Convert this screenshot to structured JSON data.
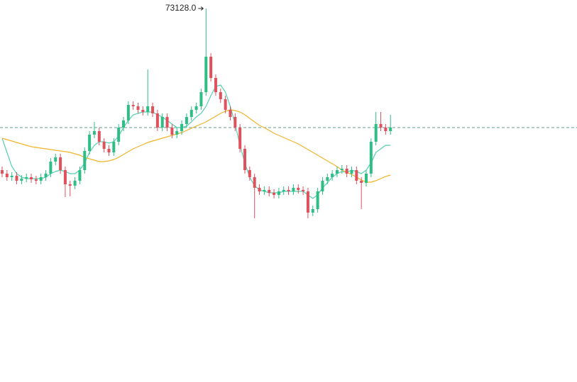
{
  "chart_data": {
    "type": "candlestick",
    "ylim": [
      46778,
      73728
    ],
    "up_color": "#2ebd85",
    "down_color": "#e0515e",
    "current_line_color": "#5e9e8e",
    "max_label": "73128.0",
    "open": [
      61728,
      61478,
      61228,
      61328,
      60978,
      61128,
      61228,
      61078,
      60978,
      61228,
      61478,
      62328,
      62628,
      61728,
      60728,
      60628,
      60978,
      61728,
      63078,
      64228,
      64478,
      63728,
      63228,
      62978,
      63728,
      64728,
      65228,
      66328,
      66228,
      65978,
      65828,
      66228,
      65728,
      64728,
      65478,
      64728,
      64228,
      64478,
      64978,
      65478,
      65978,
      66228,
      67228,
      69728,
      68228,
      67228,
      66728,
      65978,
      65478,
      64728,
      63228,
      61728,
      61228,
      60478,
      60228,
      60328,
      60128,
      59978,
      60228,
      60328,
      60228,
      60478,
      60328,
      60228,
      58728,
      58978,
      60228,
      60978,
      61228,
      61478,
      61728,
      61828,
      61478,
      61728,
      60978,
      60828,
      61478,
      63728,
      64978,
      64728,
      64478
    ],
    "high": [
      61978,
      61728,
      61578,
      61578,
      61378,
      61478,
      61478,
      61328,
      61478,
      61728,
      62578,
      62878,
      62878,
      61978,
      60978,
      61228,
      61978,
      63328,
      64478,
      65128,
      64728,
      63978,
      63478,
      63978,
      64978,
      65478,
      66578,
      66578,
      66478,
      66228,
      68828,
      66478,
      65978,
      65728,
      65728,
      64978,
      64728,
      65228,
      65728,
      66228,
      66478,
      67478,
      73128,
      69978,
      68478,
      67478,
      66978,
      66228,
      65728,
      64978,
      63478,
      61978,
      61478,
      60728,
      60578,
      60578,
      60378,
      60478,
      60578,
      60578,
      60728,
      60728,
      60578,
      60478,
      59228,
      60478,
      61228,
      61478,
      61728,
      61978,
      62078,
      62078,
      61978,
      61978,
      61228,
      61728,
      63978,
      65828,
      65828,
      64978,
      65628
    ],
    "low": [
      61228,
      60978,
      60978,
      60728,
      60728,
      60878,
      60828,
      60728,
      60728,
      60978,
      61228,
      62078,
      61478,
      59828,
      59878,
      60378,
      60728,
      61478,
      62828,
      63978,
      63478,
      62978,
      62728,
      62728,
      63478,
      64478,
      64978,
      65978,
      65728,
      65578,
      65578,
      65478,
      64478,
      64478,
      64478,
      63978,
      63978,
      64228,
      64728,
      65228,
      65728,
      65978,
      66978,
      67978,
      66978,
      66478,
      65728,
      65228,
      64478,
      62978,
      61478,
      60978,
      58328,
      59978,
      59978,
      59878,
      59728,
      59728,
      59978,
      59978,
      59978,
      60078,
      59978,
      58328,
      58478,
      58728,
      59978,
      60728,
      60978,
      61228,
      61478,
      61228,
      61228,
      60728,
      58978,
      60578,
      61228,
      63478,
      64478,
      64228,
      64228
    ],
    "close": [
      61478,
      61228,
      61328,
      60978,
      61128,
      61228,
      61078,
      60978,
      61228,
      61478,
      62328,
      62628,
      61728,
      60728,
      60628,
      60978,
      61728,
      63078,
      64228,
      64478,
      63728,
      63228,
      62978,
      63728,
      64728,
      65228,
      66328,
      66228,
      65978,
      65828,
      66228,
      65728,
      64728,
      65478,
      64728,
      64228,
      64478,
      64978,
      65478,
      65978,
      66228,
      67228,
      69728,
      68228,
      67228,
      66728,
      65978,
      65478,
      64728,
      63228,
      61728,
      61228,
      60478,
      60228,
      60328,
      60128,
      59978,
      60228,
      60328,
      60228,
      60478,
      60328,
      60228,
      58728,
      58978,
      60228,
      60978,
      61228,
      61478,
      61728,
      61828,
      61478,
      61728,
      60978,
      60828,
      61478,
      63728,
      64978,
      64728,
      64478,
      64728
    ],
    "ma": [
      {
        "color": "#55d0b0",
        "values": [
          63978,
          62978,
          61978,
          61478,
          61228,
          61128,
          61128,
          61128,
          61128,
          61228,
          61478,
          61628,
          61728,
          61628,
          61478,
          61478,
          61728,
          62228,
          62978,
          63478,
          63728,
          63728,
          63628,
          63728,
          64128,
          64728,
          65228,
          65628,
          65728,
          65828,
          65828,
          65828,
          65628,
          65478,
          65228,
          64978,
          64728,
          64728,
          64828,
          65128,
          65478,
          65728,
          66228,
          66978,
          67628,
          67728,
          67228,
          66228,
          64978,
          63478,
          62228,
          61228,
          60628,
          60328,
          60228,
          60128,
          60128,
          60128,
          60228,
          60228,
          60228,
          60228,
          60228,
          59978,
          59728,
          59978,
          60478,
          60828,
          61228,
          61478,
          61628,
          61578,
          61728,
          61628,
          61478,
          61728,
          62228,
          62978,
          63228,
          63478,
          63478
        ]
      },
      {
        "color": "#f0b429",
        "values": [
          63978,
          63878,
          63778,
          63678,
          63578,
          63478,
          63378,
          63328,
          63278,
          63228,
          63178,
          63128,
          63078,
          63028,
          62978,
          62878,
          62778,
          62628,
          62528,
          62428,
          62328,
          62328,
          62378,
          62478,
          62628,
          62828,
          63028,
          63228,
          63378,
          63528,
          63678,
          63778,
          63878,
          63978,
          64078,
          64178,
          64278,
          64378,
          64528,
          64678,
          64828,
          64978,
          65128,
          65328,
          65528,
          65728,
          65878,
          65978,
          65928,
          65828,
          65628,
          65378,
          65128,
          64878,
          64728,
          64528,
          64328,
          64178,
          64028,
          63878,
          63728,
          63578,
          63378,
          63178,
          62978,
          62778,
          62578,
          62378,
          62178,
          61978,
          61728,
          61578,
          61428,
          61228,
          61028,
          60878,
          60878,
          60978,
          61128,
          61278,
          61378
        ]
      }
    ]
  }
}
